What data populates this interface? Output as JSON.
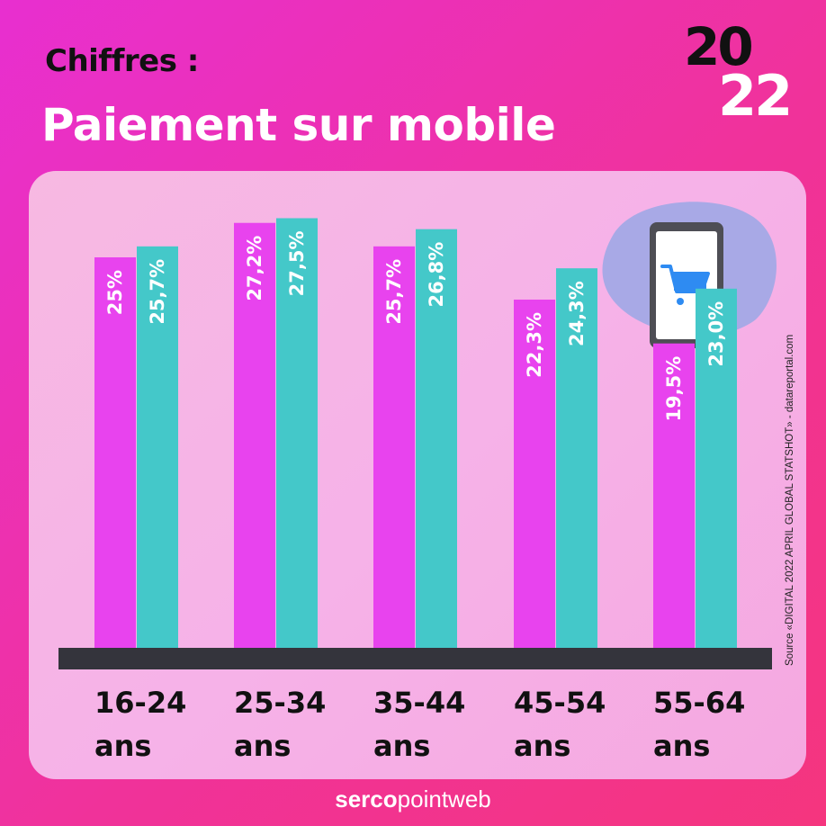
{
  "header": {
    "kicker": "Chiffres :",
    "title": "Paiement sur mobile",
    "year_top": "20",
    "year_bottom": "22"
  },
  "source": "Source «DIGITAL 2022 APRIL GLOBAL STATSHOT» - datareportal.com",
  "footer": {
    "brand_bold": "serco",
    "brand_light": "pointweb"
  },
  "colors": {
    "series_a": "#e843ee",
    "series_b": "#44c8c9",
    "baseline": "#34343c"
  },
  "icons": {
    "illustration": "smartphone-cart-icon"
  },
  "chart_data": {
    "type": "bar",
    "title": "Paiement sur mobile",
    "categories": [
      [
        "16-24",
        "ans"
      ],
      [
        "25-34",
        "ans"
      ],
      [
        "35-44",
        "ans"
      ],
      [
        "45-54",
        "ans"
      ],
      [
        "55-64",
        "ans"
      ]
    ],
    "series": [
      {
        "values": [
          25.0,
          27.2,
          25.7,
          22.3,
          19.5
        ],
        "labels": [
          "25%",
          "27,2%",
          "25,7%",
          "22,3%",
          "19,5%"
        ],
        "color": "#e843ee"
      },
      {
        "values": [
          25.7,
          27.5,
          26.8,
          24.3,
          23.0
        ],
        "labels": [
          "25,7%",
          "27,5%",
          "26,8%",
          "24,3%",
          "23,0%"
        ],
        "color": "#44c8c9"
      }
    ],
    "ylim": [
      0,
      29
    ],
    "grid": false,
    "legend": "none"
  }
}
